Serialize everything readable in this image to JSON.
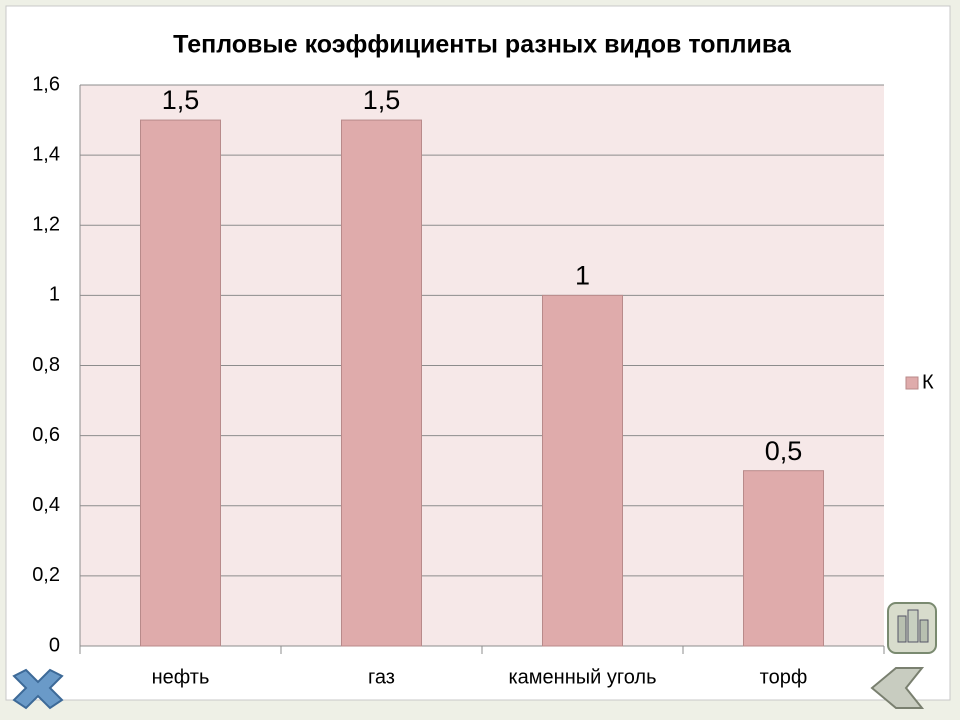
{
  "chart_data": {
    "type": "bar",
    "title": "Тепловые коэффициенты разных видов топлива",
    "categories": [
      "нефть",
      "газ",
      "каменный уголь",
      "торф"
    ],
    "series": [
      {
        "name": "К",
        "color": "#dfabab",
        "values": [
          1.5,
          1.5,
          1,
          0.5
        ],
        "value_labels": [
          "1,5",
          "1,5",
          "1",
          "0,5"
        ]
      }
    ],
    "ylim": [
      0,
      1.6
    ],
    "yticks": [
      0,
      {
        "value": 0.2,
        "label": "0,2"
      },
      {
        "value": 0.4,
        "label": "0,4"
      },
      {
        "value": 0.6,
        "label": "0,6"
      },
      {
        "value": 0.8,
        "label": "0,8"
      },
      1,
      {
        "value": 1.2,
        "label": "1,2"
      },
      {
        "value": 1.4,
        "label": "1,4"
      },
      {
        "value": 1.6,
        "label": "1,6"
      }
    ],
    "grid": true,
    "legend": "right"
  }
}
